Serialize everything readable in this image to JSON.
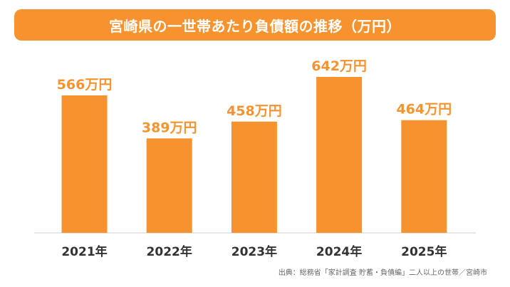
{
  "chart_data": {
    "type": "bar",
    "title": "宮崎県の一世帯あたり負債額の推移（万円）",
    "categories": [
      "2021年",
      "2022年",
      "2023年",
      "2024年",
      "2025年"
    ],
    "values": [
      566,
      389,
      458,
      642,
      464
    ],
    "value_labels": [
      "566万円",
      "389万円",
      "458万円",
      "642万円",
      "464万円"
    ],
    "ylim": [
      0,
      770
    ],
    "grid": false,
    "bar_color": "#f7932f",
    "source": "出典：総務省「家計調査 貯蓄・負債編」二人以上の世帯／宮崎市"
  }
}
